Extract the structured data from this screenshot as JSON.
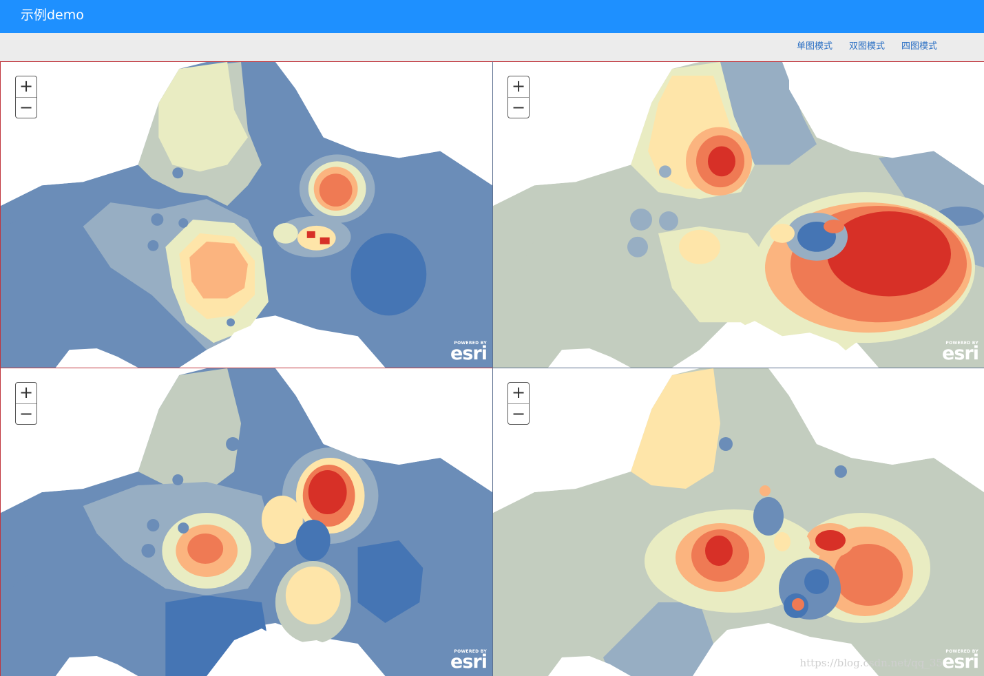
{
  "app": {
    "title": "示例demo"
  },
  "modes": [
    {
      "label": "单图模式"
    },
    {
      "label": "双图模式"
    },
    {
      "label": "四图模式"
    }
  ],
  "maps": [
    {
      "zoom_in": "+",
      "zoom_out": "−",
      "attribution_small": "POWERED BY",
      "attribution_logo": "esri"
    },
    {
      "zoom_in": "+",
      "zoom_out": "−",
      "attribution_small": "POWERED BY",
      "attribution_logo": "esri"
    },
    {
      "zoom_in": "+",
      "zoom_out": "−",
      "attribution_small": "POWERED BY",
      "attribution_logo": "esri"
    },
    {
      "zoom_in": "+",
      "zoom_out": "−",
      "attribution_small": "POWERED BY",
      "attribution_logo": "esri"
    }
  ],
  "watermark": "https://blog.csdn.net/qq_35",
  "colors": {
    "header": "#1e90ff",
    "ramp": [
      "#4575b4",
      "#6b8db8",
      "#97aec3",
      "#c3cdbf",
      "#e9ecc2",
      "#fee5a9",
      "#fbb47f",
      "#ef7a54",
      "#d73027"
    ]
  }
}
